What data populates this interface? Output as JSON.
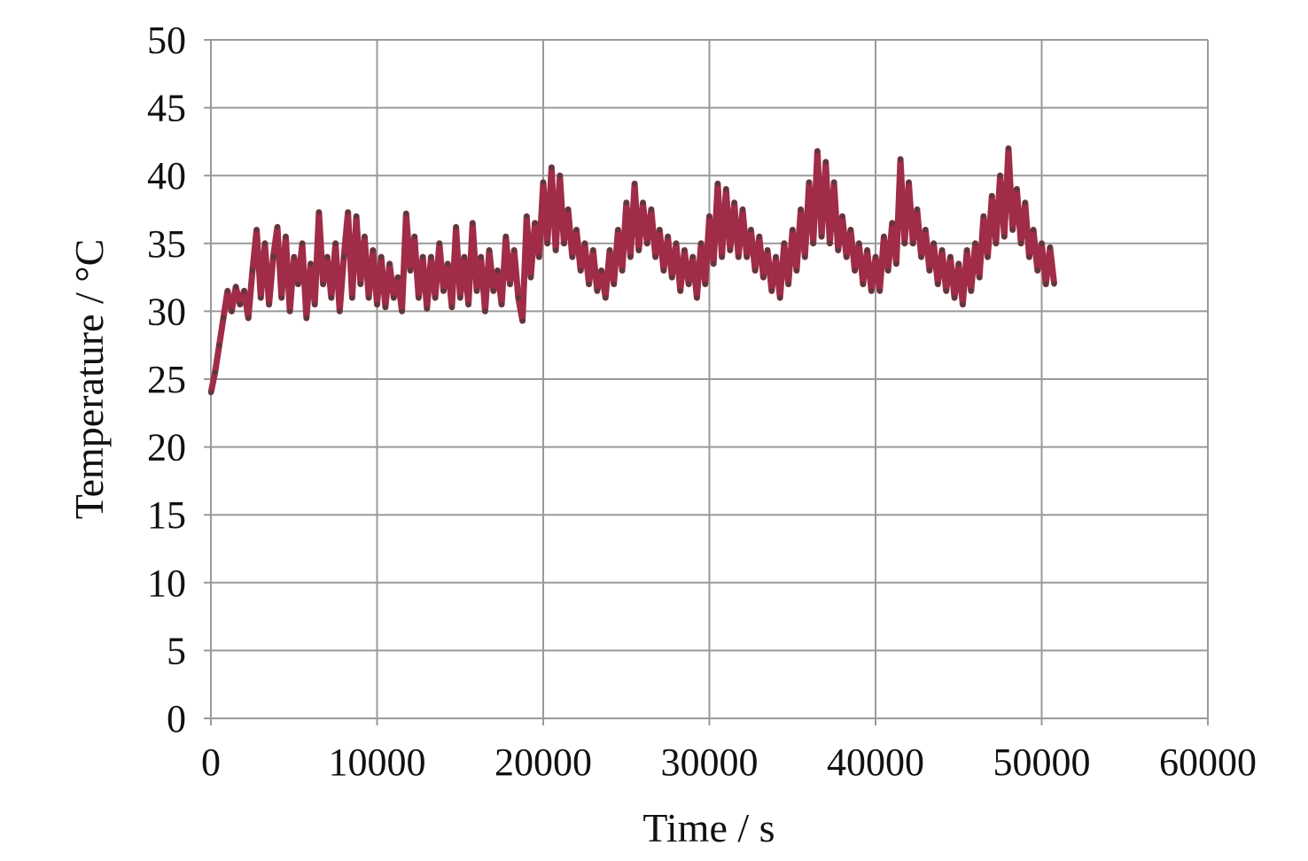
{
  "chart_data": {
    "type": "line",
    "title": "",
    "xlabel": "Time / s",
    "ylabel": "Temperature / °C",
    "xlim": [
      0,
      60000
    ],
    "ylim": [
      0,
      50
    ],
    "xticks": [
      0,
      10000,
      20000,
      30000,
      40000,
      50000,
      60000
    ],
    "yticks": [
      0,
      5,
      10,
      15,
      20,
      25,
      30,
      35,
      40,
      45,
      50
    ],
    "grid": true,
    "legend": "none",
    "colors": {
      "line": "#a02c48",
      "marker": "#5a3a3a",
      "grid": "#9a9a9a",
      "axis": "#888888"
    },
    "series": [
      {
        "points": [
          [
            0,
            24
          ],
          [
            250,
            25.5
          ],
          [
            500,
            27.5
          ],
          [
            750,
            29.5
          ],
          [
            1000,
            31.5
          ],
          [
            1250,
            30
          ],
          [
            1500,
            31.8
          ],
          [
            1750,
            30.5
          ],
          [
            2000,
            31.5
          ],
          [
            2250,
            29.5
          ],
          [
            2500,
            33
          ],
          [
            2750,
            36
          ],
          [
            3000,
            31
          ],
          [
            3250,
            35
          ],
          [
            3500,
            30.5
          ],
          [
            3750,
            34
          ],
          [
            4000,
            36.2
          ],
          [
            4250,
            31
          ],
          [
            4500,
            35.5
          ],
          [
            4750,
            30
          ],
          [
            5000,
            34
          ],
          [
            5250,
            32
          ],
          [
            5500,
            35
          ],
          [
            5750,
            29.5
          ],
          [
            6000,
            33.5
          ],
          [
            6250,
            30.5
          ],
          [
            6500,
            37.3
          ],
          [
            6750,
            32
          ],
          [
            7000,
            34
          ],
          [
            7250,
            31
          ],
          [
            7500,
            35
          ],
          [
            7750,
            30
          ],
          [
            8000,
            34
          ],
          [
            8250,
            37.3
          ],
          [
            8500,
            31
          ],
          [
            8750,
            37
          ],
          [
            9000,
            32
          ],
          [
            9250,
            35.5
          ],
          [
            9500,
            31
          ],
          [
            9750,
            34.5
          ],
          [
            10000,
            30.5
          ],
          [
            10250,
            34
          ],
          [
            10500,
            30.3
          ],
          [
            10750,
            33.5
          ],
          [
            11000,
            31
          ],
          [
            11250,
            32.5
          ],
          [
            11500,
            30
          ],
          [
            11750,
            37.2
          ],
          [
            12000,
            33
          ],
          [
            12250,
            35.5
          ],
          [
            12500,
            31
          ],
          [
            12750,
            34
          ],
          [
            13000,
            30.2
          ],
          [
            13250,
            34
          ],
          [
            13500,
            31
          ],
          [
            13750,
            35
          ],
          [
            14000,
            31.5
          ],
          [
            14250,
            33.5
          ],
          [
            14500,
            30.3
          ],
          [
            14750,
            36.2
          ],
          [
            15000,
            31
          ],
          [
            15250,
            34
          ],
          [
            15500,
            30.5
          ],
          [
            15750,
            36.5
          ],
          [
            16000,
            31.5
          ],
          [
            16250,
            34
          ],
          [
            16500,
            30
          ],
          [
            16750,
            34.5
          ],
          [
            17000,
            31.5
          ],
          [
            17250,
            33
          ],
          [
            17500,
            30.5
          ],
          [
            17750,
            35.5
          ],
          [
            18000,
            32
          ],
          [
            18250,
            34.5
          ],
          [
            18500,
            31
          ],
          [
            18750,
            29.3
          ],
          [
            19000,
            37
          ],
          [
            19250,
            32.5
          ],
          [
            19500,
            36.5
          ],
          [
            19750,
            34
          ],
          [
            20000,
            39.5
          ],
          [
            20250,
            35
          ],
          [
            20500,
            40.6
          ],
          [
            20750,
            34.5
          ],
          [
            21000,
            40
          ],
          [
            21250,
            35
          ],
          [
            21500,
            37.5
          ],
          [
            21750,
            34
          ],
          [
            22000,
            36
          ],
          [
            22250,
            33
          ],
          [
            22500,
            35
          ],
          [
            22750,
            32
          ],
          [
            23000,
            34.5
          ],
          [
            23250,
            31.5
          ],
          [
            23500,
            33
          ],
          [
            23750,
            31
          ],
          [
            24000,
            34.5
          ],
          [
            24250,
            32
          ],
          [
            24500,
            36
          ],
          [
            24750,
            33
          ],
          [
            25000,
            38
          ],
          [
            25250,
            34
          ],
          [
            25500,
            39.4
          ],
          [
            25750,
            34.5
          ],
          [
            26000,
            38
          ],
          [
            26250,
            35
          ],
          [
            26500,
            37.5
          ],
          [
            26750,
            34
          ],
          [
            27000,
            36
          ],
          [
            27250,
            33
          ],
          [
            27500,
            35.5
          ],
          [
            27750,
            32.5
          ],
          [
            28000,
            35
          ],
          [
            28250,
            31.5
          ],
          [
            28500,
            34.5
          ],
          [
            28750,
            32
          ],
          [
            29000,
            34
          ],
          [
            29250,
            31
          ],
          [
            29500,
            35
          ],
          [
            29750,
            32
          ],
          [
            30000,
            37
          ],
          [
            30250,
            33.5
          ],
          [
            30500,
            39.4
          ],
          [
            30750,
            34
          ],
          [
            31000,
            39
          ],
          [
            31250,
            34.5
          ],
          [
            31500,
            38
          ],
          [
            31750,
            34
          ],
          [
            32000,
            37.5
          ],
          [
            32250,
            34
          ],
          [
            32500,
            36
          ],
          [
            32750,
            33
          ],
          [
            33000,
            35.5
          ],
          [
            33250,
            32.5
          ],
          [
            33500,
            34.5
          ],
          [
            33750,
            31.5
          ],
          [
            34000,
            34
          ],
          [
            34250,
            31
          ],
          [
            34500,
            35
          ],
          [
            34750,
            32
          ],
          [
            35000,
            36
          ],
          [
            35250,
            33
          ],
          [
            35500,
            37.5
          ],
          [
            35750,
            34
          ],
          [
            36000,
            39.5
          ],
          [
            36250,
            35
          ],
          [
            36500,
            41.8
          ],
          [
            36750,
            35.5
          ],
          [
            37000,
            41
          ],
          [
            37250,
            35
          ],
          [
            37500,
            39.5
          ],
          [
            37750,
            34.5
          ],
          [
            38000,
            37
          ],
          [
            38250,
            34
          ],
          [
            38500,
            36
          ],
          [
            38750,
            33
          ],
          [
            39000,
            35
          ],
          [
            39250,
            32
          ],
          [
            39500,
            34.5
          ],
          [
            39750,
            31.5
          ],
          [
            40000,
            34
          ],
          [
            40250,
            31.5
          ],
          [
            40500,
            35.5
          ],
          [
            40750,
            33
          ],
          [
            41000,
            36.5
          ],
          [
            41250,
            33.5
          ],
          [
            41500,
            41.2
          ],
          [
            41750,
            35
          ],
          [
            42000,
            39.5
          ],
          [
            42250,
            35
          ],
          [
            42500,
            37.5
          ],
          [
            42750,
            34
          ],
          [
            43000,
            36
          ],
          [
            43250,
            33
          ],
          [
            43500,
            35
          ],
          [
            43750,
            32
          ],
          [
            44000,
            34.5
          ],
          [
            44250,
            31.5
          ],
          [
            44500,
            34
          ],
          [
            44750,
            31
          ],
          [
            45000,
            33.5
          ],
          [
            45250,
            30.5
          ],
          [
            45500,
            34.5
          ],
          [
            45750,
            31.5
          ],
          [
            46000,
            35
          ],
          [
            46250,
            32.5
          ],
          [
            46500,
            37
          ],
          [
            46750,
            34
          ],
          [
            47000,
            38.5
          ],
          [
            47250,
            35
          ],
          [
            47500,
            40
          ],
          [
            47750,
            35.5
          ],
          [
            48000,
            42
          ],
          [
            48250,
            36
          ],
          [
            48500,
            39
          ],
          [
            48750,
            35
          ],
          [
            49000,
            38
          ],
          [
            49250,
            34
          ],
          [
            49500,
            36
          ],
          [
            49750,
            33
          ],
          [
            50000,
            35
          ],
          [
            50250,
            32
          ],
          [
            50500,
            34.7
          ],
          [
            50750,
            32
          ]
        ]
      }
    ]
  }
}
